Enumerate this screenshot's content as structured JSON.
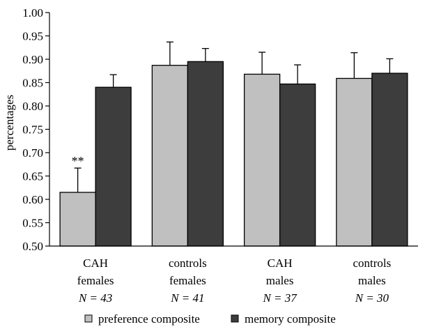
{
  "chart_data": {
    "type": "bar",
    "ylabel": "percentages",
    "ylim": [
      0.5,
      1.0
    ],
    "yticks": [
      "0.50",
      "0.55",
      "0.60",
      "0.65",
      "0.70",
      "0.75",
      "0.80",
      "0.85",
      "0.90",
      "0.95",
      "1.00"
    ],
    "grid": false,
    "legend_position": "bottom",
    "categories": [
      {
        "lines": [
          "CAH",
          "females"
        ],
        "n": "N = 43"
      },
      {
        "lines": [
          "controls",
          "females"
        ],
        "n": "N = 41"
      },
      {
        "lines": [
          "CAH",
          "males"
        ],
        "n": "N = 37"
      },
      {
        "lines": [
          "controls",
          "males"
        ],
        "n": "N = 30"
      }
    ],
    "series": [
      {
        "name": "preference composite",
        "color": "#c0c0c0",
        "values": [
          0.615,
          0.887,
          0.868,
          0.859
        ],
        "errors": [
          0.052,
          0.05,
          0.047,
          0.055
        ]
      },
      {
        "name": "memory composite",
        "color": "#3d3d3d",
        "values": [
          0.84,
          0.895,
          0.847,
          0.87
        ],
        "errors": [
          0.027,
          0.028,
          0.041,
          0.031
        ]
      }
    ],
    "annotations": [
      {
        "text": "**",
        "category": 0,
        "series": 0
      }
    ]
  }
}
